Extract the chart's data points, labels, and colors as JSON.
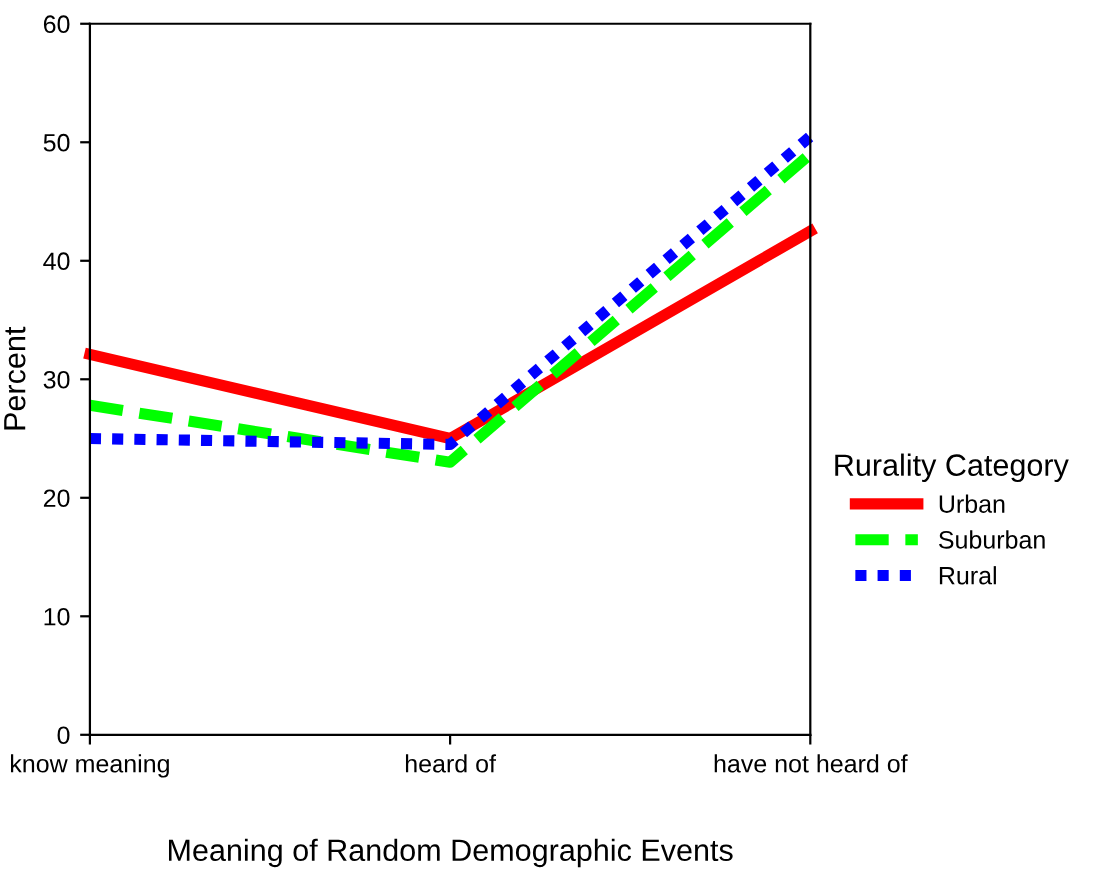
{
  "chart_data": {
    "type": "line",
    "xlabel": "Meaning of Random Demographic Events",
    "ylabel": "Percent",
    "categories": [
      "know meaning",
      "heard of",
      "have not heard of"
    ],
    "ylim": [
      0,
      60
    ],
    "yticks": [
      0,
      10,
      20,
      30,
      40,
      50,
      60
    ],
    "grid": false,
    "legend": "right",
    "legend_title": "Rurality Category",
    "marker": "none",
    "series": [
      {
        "name": "Urban",
        "color": "#ff0000",
        "line_style": "solid",
        "values": [
          32.1,
          25,
          42.5
        ]
      },
      {
        "name": "Suburban",
        "color": "#00ff00",
        "line_style": "dashed",
        "values": [
          27.8,
          23,
          49
        ]
      },
      {
        "name": "Rural",
        "color": "#0000ff",
        "line_style": "dotted",
        "values": [
          25,
          24.5,
          50.5
        ]
      }
    ]
  }
}
